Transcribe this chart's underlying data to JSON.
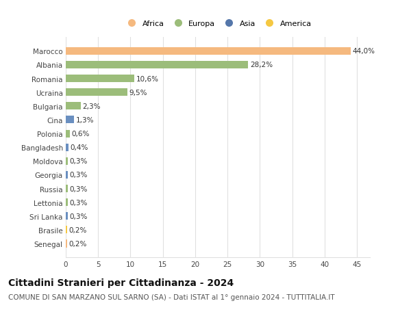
{
  "countries": [
    "Marocco",
    "Albania",
    "Romania",
    "Ucraina",
    "Bulgaria",
    "Cina",
    "Polonia",
    "Bangladesh",
    "Moldova",
    "Georgia",
    "Russia",
    "Lettonia",
    "Sri Lanka",
    "Brasile",
    "Senegal"
  ],
  "values": [
    44.0,
    28.2,
    10.6,
    9.5,
    2.3,
    1.3,
    0.6,
    0.4,
    0.3,
    0.3,
    0.3,
    0.3,
    0.3,
    0.2,
    0.2
  ],
  "labels": [
    "44,0%",
    "28,2%",
    "10,6%",
    "9,5%",
    "2,3%",
    "1,3%",
    "0,6%",
    "0,4%",
    "0,3%",
    "0,3%",
    "0,3%",
    "0,3%",
    "0,3%",
    "0,2%",
    "0,2%"
  ],
  "colors": [
    "#f5b97f",
    "#9cbd7a",
    "#9cbd7a",
    "#9cbd7a",
    "#9cbd7a",
    "#6a8fc0",
    "#9cbd7a",
    "#6a8fc0",
    "#9cbd7a",
    "#6a8fc0",
    "#9cbd7a",
    "#9cbd7a",
    "#6a8fc0",
    "#f5c842",
    "#f5b97f"
  ],
  "legend": [
    {
      "label": "Africa",
      "color": "#f5b97f"
    },
    {
      "label": "Europa",
      "color": "#9cbd7a"
    },
    {
      "label": "Asia",
      "color": "#5577aa"
    },
    {
      "label": "America",
      "color": "#f5c842"
    }
  ],
  "title": "Cittadini Stranieri per Cittadinanza - 2024",
  "subtitle": "COMUNE DI SAN MARZANO SUL SARNO (SA) - Dati ISTAT al 1° gennaio 2024 - TUTTITALIA.IT",
  "xlim": [
    0,
    47
  ],
  "xticks": [
    0,
    5,
    10,
    15,
    20,
    25,
    30,
    35,
    40,
    45
  ],
  "background_color": "#ffffff",
  "plot_bg_color": "#ffffff",
  "grid_color": "#e0e0e0",
  "title_fontsize": 10,
  "subtitle_fontsize": 7.5,
  "bar_label_fontsize": 7.5,
  "tick_fontsize": 7.5,
  "legend_fontsize": 8
}
